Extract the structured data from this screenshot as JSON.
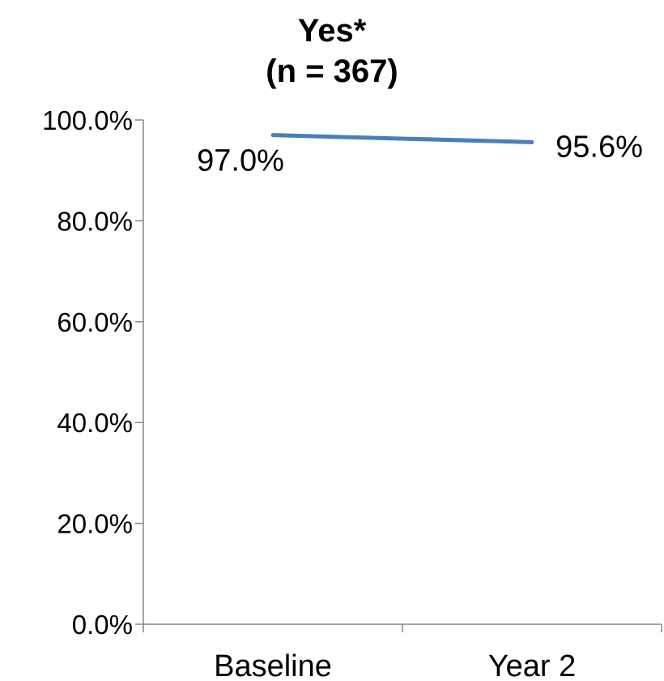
{
  "chart_data": {
    "type": "line",
    "title": "Yes*",
    "subtitle": "(n = 367)",
    "categories": [
      "Baseline",
      "Year 2"
    ],
    "series": [
      {
        "values": [
          97.0,
          95.6
        ],
        "labels": [
          "97.0%",
          "95.6%"
        ],
        "color": "#4a7ebb"
      }
    ],
    "yticks": [
      "0.0%",
      "20.0%",
      "40.0%",
      "60.0%",
      "80.0%",
      "100.0%"
    ],
    "ylim": [
      0,
      100
    ],
    "grid": false,
    "legend": "none"
  }
}
